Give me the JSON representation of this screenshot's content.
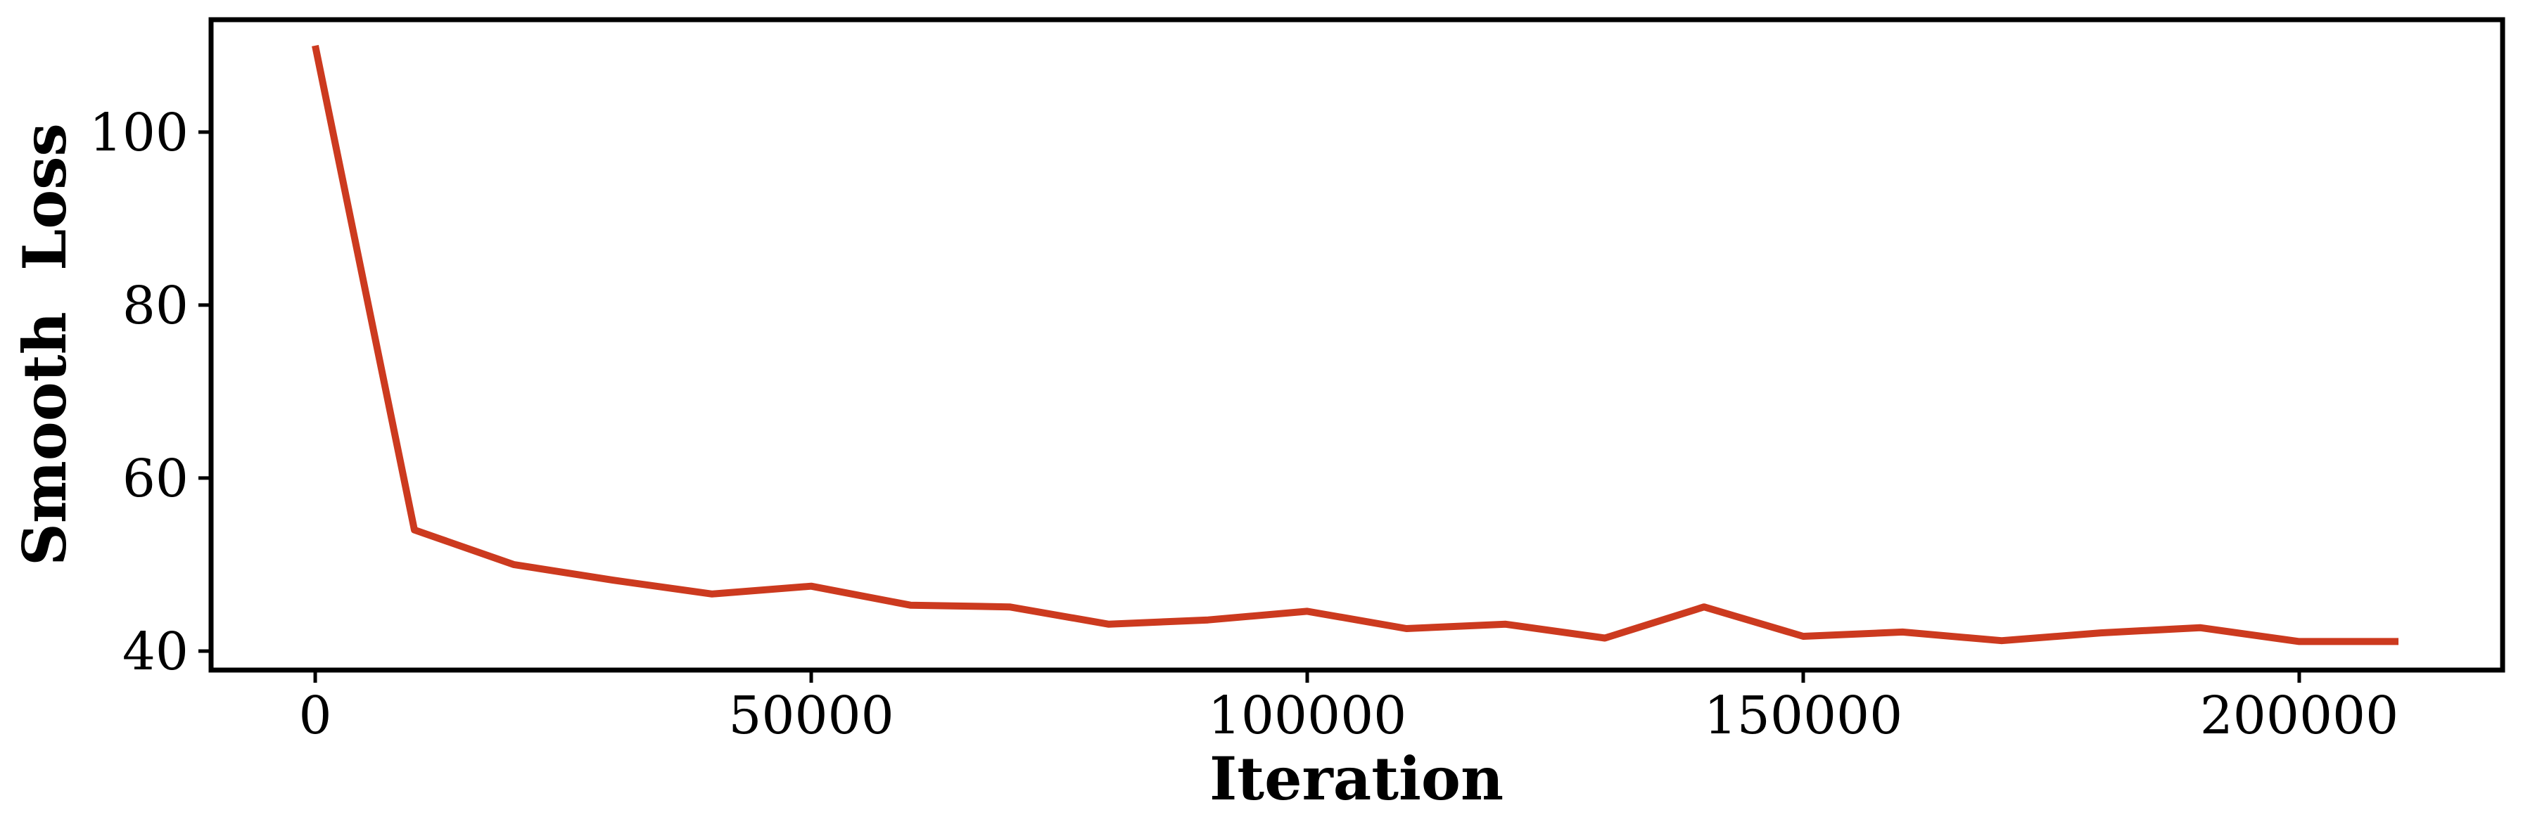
{
  "chart_data": {
    "type": "line",
    "title": "",
    "xlabel": "Iteration",
    "ylabel": "Smooth  Loss",
    "xlim": [
      -10500,
      220500
    ],
    "ylim": [
      37.8,
      113
    ],
    "xticks": [
      0,
      50000,
      100000,
      150000,
      200000
    ],
    "xtick_labels": [
      "0",
      "50000",
      "100000",
      "150000",
      "200000"
    ],
    "yticks": [
      40,
      60,
      80,
      100
    ],
    "ytick_labels": [
      "40",
      "60",
      "80",
      "100"
    ],
    "grid": false,
    "legend": "none",
    "line_color": "#cc3a1f",
    "series": [
      {
        "x": [
          0,
          10000,
          20000,
          30000,
          40000,
          50000,
          60000,
          70000,
          80000,
          90000,
          100000,
          110000,
          120000,
          130000,
          140000,
          150000,
          160000,
          170000,
          180000,
          190000,
          200000,
          210000
        ],
        "values": [
          110,
          54,
          50,
          48.2,
          46.6,
          47.5,
          45.3,
          45.1,
          43.1,
          43.6,
          44.6,
          42.6,
          43.1,
          41.5,
          45.1,
          41.7,
          42.2,
          41.2,
          42.1,
          42.7,
          41.1,
          41.1
        ]
      }
    ]
  }
}
